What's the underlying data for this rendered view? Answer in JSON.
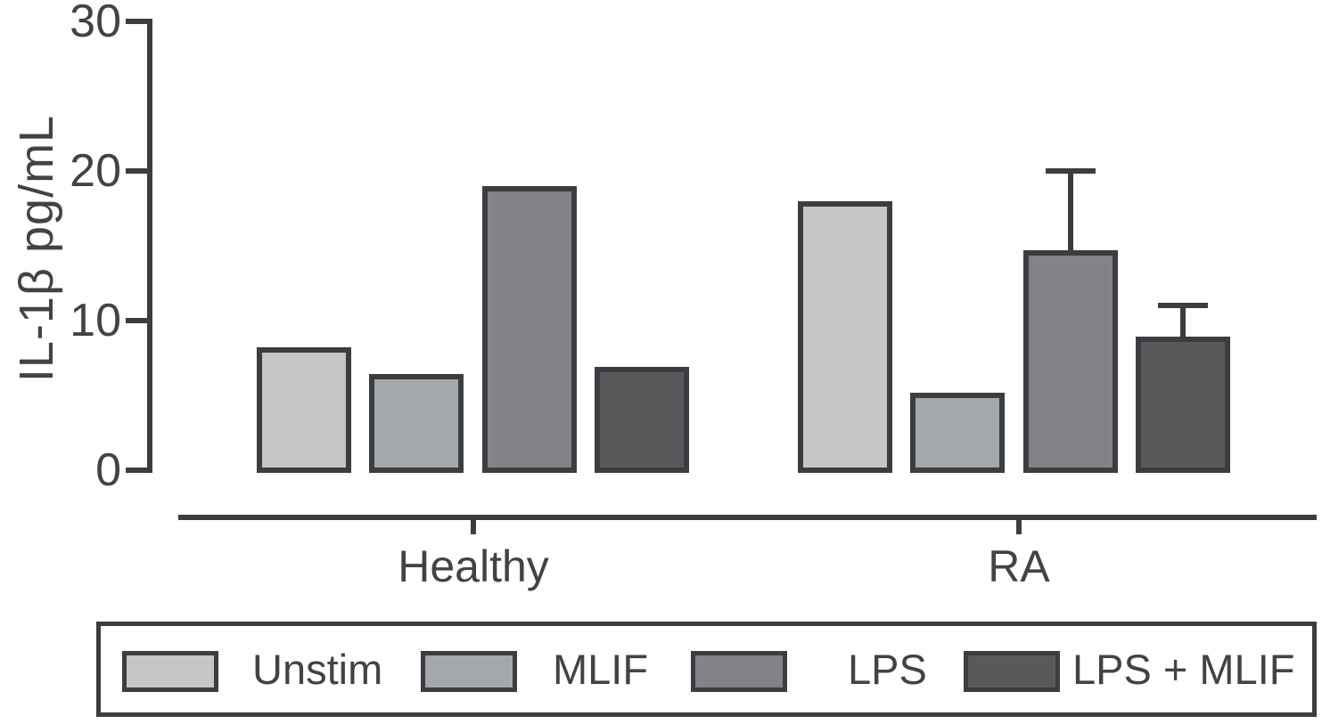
{
  "chart_data": {
    "type": "bar",
    "title": "",
    "ylabel": "IL-1β pg/mL",
    "xlabel": "",
    "ylim": [
      0,
      30
    ],
    "yticks": [
      0,
      10,
      20,
      30
    ],
    "ytick_labels": [
      "0",
      "10",
      "20",
      "30"
    ],
    "grid": false,
    "legend_position": "bottom",
    "categories": [
      "Healthy",
      "RA"
    ],
    "series": [
      {
        "name": "Unstim",
        "color": "#c5c6c8",
        "values": [
          8.2,
          18.0
        ],
        "errors_plus": [
          0,
          0
        ]
      },
      {
        "name": "MLIF",
        "color": "#a4a8ab",
        "values": [
          6.4,
          5.2
        ],
        "errors_plus": [
          0,
          0
        ]
      },
      {
        "name": "LPS",
        "color": "#818386",
        "values": [
          19.0,
          14.7
        ],
        "errors_plus": [
          0,
          5.3
        ]
      },
      {
        "name": "LPS + MLIF",
        "color": "#58595b",
        "values": [
          6.9,
          8.9
        ],
        "errors_plus": [
          0,
          2.1
        ]
      }
    ],
    "error_bars": "upper only, capped",
    "axis_color": "#3b3d40",
    "text_color": "#414345",
    "background_color": "#ffffff"
  }
}
